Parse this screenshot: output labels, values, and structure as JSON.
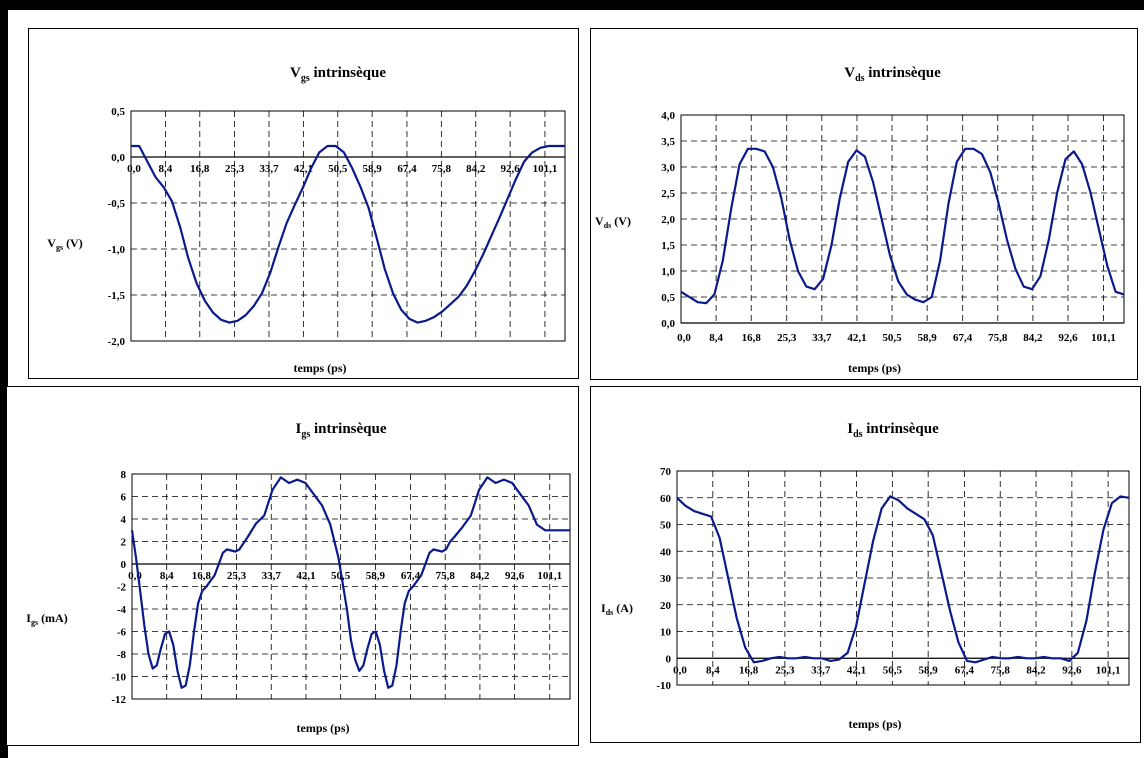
{
  "chart_data": [
    {
      "id": "vgs",
      "type": "line",
      "title_main": "V",
      "title_sub": "gs",
      "title_rest": " intrinsèque",
      "ylabel_main": "V",
      "ylabel_sub": "gs",
      "ylabel_rest": " (V)",
      "xlabel": "temps (ps)",
      "xlim": [
        0,
        106
      ],
      "ylim": [
        -2.0,
        0.5
      ],
      "yticks": [
        0.5,
        0.0,
        -0.5,
        -1.0,
        -1.5,
        -2.0
      ],
      "ytick_labels": [
        "0,5",
        "0,0",
        "-0,5",
        "-1,0",
        "-1,5",
        "-2,0"
      ],
      "xtick_labels_at_zero": true,
      "grid": true,
      "series": [
        {
          "color": "#0a1a8c",
          "x": [
            0,
            2,
            4,
            6,
            8,
            10,
            12,
            14,
            16,
            18,
            20,
            22,
            24,
            26,
            28,
            30,
            32,
            34,
            36,
            38,
            40,
            42,
            44,
            46,
            48,
            50,
            52,
            54,
            56,
            58,
            60,
            62,
            64,
            66,
            68,
            70,
            72,
            74,
            76,
            78,
            80,
            82,
            84,
            86,
            88,
            90,
            92,
            94,
            96,
            98,
            100,
            102,
            104,
            106
          ],
          "y": [
            0.12,
            0.12,
            -0.05,
            -0.22,
            -0.33,
            -0.48,
            -0.76,
            -1.1,
            -1.37,
            -1.56,
            -1.69,
            -1.77,
            -1.8,
            -1.78,
            -1.72,
            -1.62,
            -1.48,
            -1.26,
            -0.98,
            -0.72,
            -0.52,
            -0.33,
            -0.12,
            0.05,
            0.12,
            0.12,
            0.05,
            -0.12,
            -0.32,
            -0.55,
            -0.88,
            -1.22,
            -1.48,
            -1.66,
            -1.76,
            -1.8,
            -1.78,
            -1.74,
            -1.68,
            -1.6,
            -1.52,
            -1.4,
            -1.24,
            -1.06,
            -0.86,
            -0.66,
            -0.45,
            -0.24,
            -0.05,
            0.05,
            0.1,
            0.12,
            0.12,
            0.12
          ]
        }
      ]
    },
    {
      "id": "vds",
      "type": "line",
      "title_main": "V",
      "title_sub": "ds",
      "title_rest": " intrinsèque",
      "ylabel_main": "V",
      "ylabel_sub": "ds",
      "ylabel_rest": " (V)",
      "xlabel": "temps (ps)",
      "xlim": [
        0,
        106
      ],
      "ylim": [
        0.0,
        4.0
      ],
      "yticks": [
        4.0,
        3.5,
        3.0,
        2.5,
        2.0,
        1.5,
        1.0,
        0.5,
        0.0
      ],
      "ytick_labels": [
        "4,0",
        "3,5",
        "3,0",
        "2,5",
        "2,0",
        "1,5",
        "1,0",
        "0,5",
        "0,0"
      ],
      "xtick_labels_at_zero": false,
      "grid": true,
      "series": [
        {
          "color": "#0a1a8c",
          "x": [
            0,
            2,
            4,
            6,
            8,
            10,
            12,
            14,
            16,
            18,
            20,
            22,
            24,
            26,
            28,
            30,
            32,
            34,
            36,
            38,
            40,
            42,
            44,
            46,
            48,
            50,
            52,
            54,
            56,
            58,
            60,
            62,
            64,
            66,
            68,
            70,
            72,
            74,
            76,
            78,
            80,
            82,
            84,
            86,
            88,
            90,
            92,
            94,
            96,
            98,
            100,
            102,
            104,
            106
          ],
          "y": [
            0.6,
            0.5,
            0.4,
            0.38,
            0.55,
            1.2,
            2.2,
            3.05,
            3.35,
            3.35,
            3.3,
            3.0,
            2.4,
            1.6,
            1.0,
            0.7,
            0.65,
            0.85,
            1.5,
            2.4,
            3.1,
            3.32,
            3.2,
            2.7,
            2.0,
            1.3,
            0.8,
            0.55,
            0.45,
            0.4,
            0.5,
            1.2,
            2.3,
            3.1,
            3.35,
            3.35,
            3.25,
            2.9,
            2.3,
            1.6,
            1.05,
            0.7,
            0.65,
            0.9,
            1.6,
            2.5,
            3.15,
            3.3,
            3.05,
            2.5,
            1.8,
            1.1,
            0.6,
            0.55
          ]
        }
      ]
    },
    {
      "id": "igs",
      "type": "line",
      "title_main": "I",
      "title_sub": "gs",
      "title_rest": " intrinsèque",
      "ylabel_main": "I",
      "ylabel_sub": "gs",
      "ylabel_rest": " (mA)",
      "xlabel": "temps (ps)",
      "xlim": [
        0,
        106
      ],
      "ylim": [
        -12,
        8
      ],
      "yticks": [
        8,
        6,
        4,
        2,
        0,
        -2,
        -4,
        -6,
        -8,
        -10,
        -12
      ],
      "ytick_labels": [
        "8",
        "6",
        "4",
        "2",
        "0",
        "-2",
        "-4",
        "-6",
        "-8",
        "-10",
        "-12"
      ],
      "xtick_labels_at_zero": true,
      "grid": true,
      "series": [
        {
          "color": "#0a1a8c",
          "x": [
            0,
            1,
            2,
            3,
            4,
            5,
            6,
            7,
            8,
            9,
            10,
            11,
            12,
            13,
            14,
            15,
            16,
            17,
            18,
            19,
            20,
            21,
            22,
            23,
            24,
            25,
            26,
            28,
            30,
            32,
            34,
            36,
            38,
            40,
            42,
            44,
            46,
            48,
            50,
            52,
            53,
            54,
            55,
            56,
            57,
            58,
            59,
            60,
            61,
            62,
            63,
            64,
            65,
            66,
            67,
            68,
            69,
            70,
            71,
            72,
            73,
            74,
            75,
            76,
            77,
            78,
            80,
            82,
            84,
            86,
            88,
            90,
            92,
            94,
            96,
            98,
            100,
            102,
            104,
            106
          ],
          "y": [
            3,
            0.5,
            -2.5,
            -5.5,
            -8,
            -9.3,
            -9,
            -7.5,
            -6.2,
            -6,
            -7.2,
            -9.5,
            -11,
            -10.8,
            -9,
            -6,
            -3.5,
            -2.4,
            -2,
            -1.5,
            -1,
            0,
            1,
            1.3,
            1.2,
            1.1,
            1.3,
            2.4,
            3.6,
            4.3,
            6.6,
            7.7,
            7.2,
            7.5,
            7.2,
            6.2,
            5.2,
            3.5,
            0.5,
            -4,
            -6.8,
            -8.5,
            -9.5,
            -9,
            -7.5,
            -6.2,
            -6,
            -7.2,
            -9.5,
            -11,
            -10.8,
            -9,
            -6,
            -3.5,
            -2.4,
            -2,
            -1.5,
            -1,
            0,
            1,
            1.3,
            1.2,
            1.1,
            1.3,
            2,
            2.4,
            3.3,
            4.3,
            6.6,
            7.7,
            7.2,
            7.5,
            7.2,
            6.2,
            5.2,
            3.5,
            3,
            3,
            3,
            3
          ]
        }
      ]
    },
    {
      "id": "ids",
      "type": "line",
      "title_main": "I",
      "title_sub": "ds",
      "title_rest": " intrinsèque",
      "ylabel_main": "I",
      "ylabel_sub": "ds",
      "ylabel_rest": " (A)",
      "xlabel": "temps (ps)",
      "xlim": [
        0,
        106
      ],
      "ylim": [
        -10,
        70
      ],
      "yticks": [
        70,
        60,
        50,
        40,
        30,
        20,
        10,
        0,
        -10
      ],
      "ytick_labels": [
        "70",
        "60",
        "50",
        "40",
        "30",
        "20",
        "10",
        "0",
        "-10"
      ],
      "xtick_labels_at_zero": true,
      "grid": true,
      "series": [
        {
          "color": "#0a1a8c",
          "x": [
            0,
            2,
            4,
            6,
            8,
            10,
            12,
            14,
            16,
            18,
            20,
            22,
            24,
            26,
            28,
            30,
            32,
            34,
            36,
            38,
            40,
            42,
            44,
            46,
            48,
            50,
            52,
            54,
            56,
            58,
            60,
            62,
            64,
            66,
            68,
            70,
            72,
            74,
            76,
            78,
            80,
            82,
            84,
            86,
            88,
            90,
            92,
            94,
            96,
            98,
            100,
            102,
            104,
            106
          ],
          "y": [
            60,
            57,
            55,
            54,
            53,
            45,
            30,
            15,
            4,
            -1.5,
            -1,
            0,
            0.5,
            0,
            0,
            0.5,
            0,
            0,
            -1,
            -0.5,
            2,
            12,
            28,
            44,
            56,
            60.5,
            59,
            56,
            54,
            52,
            46,
            32,
            18,
            6,
            -1,
            -1.5,
            -0.5,
            0.5,
            0,
            0,
            0.5,
            0,
            0,
            0.5,
            0,
            0,
            -1,
            2,
            14,
            32,
            48,
            58,
            60.5,
            60
          ]
        }
      ]
    }
  ],
  "xtick_labels": [
    "0,0",
    "8,4",
    "16,8",
    "25,3",
    "33,7",
    "42,1",
    "50,5",
    "58,9",
    "67,4",
    "75,8",
    "84,2",
    "92,6",
    "101,1"
  ],
  "xticks": [
    0,
    8.4,
    16.8,
    25.3,
    33.7,
    42.1,
    50.5,
    58.9,
    67.4,
    75.8,
    84.2,
    92.6,
    101.1
  ],
  "colors": {
    "frame": "#000000",
    "grid": "#000000",
    "line": "#0a1a8c"
  }
}
